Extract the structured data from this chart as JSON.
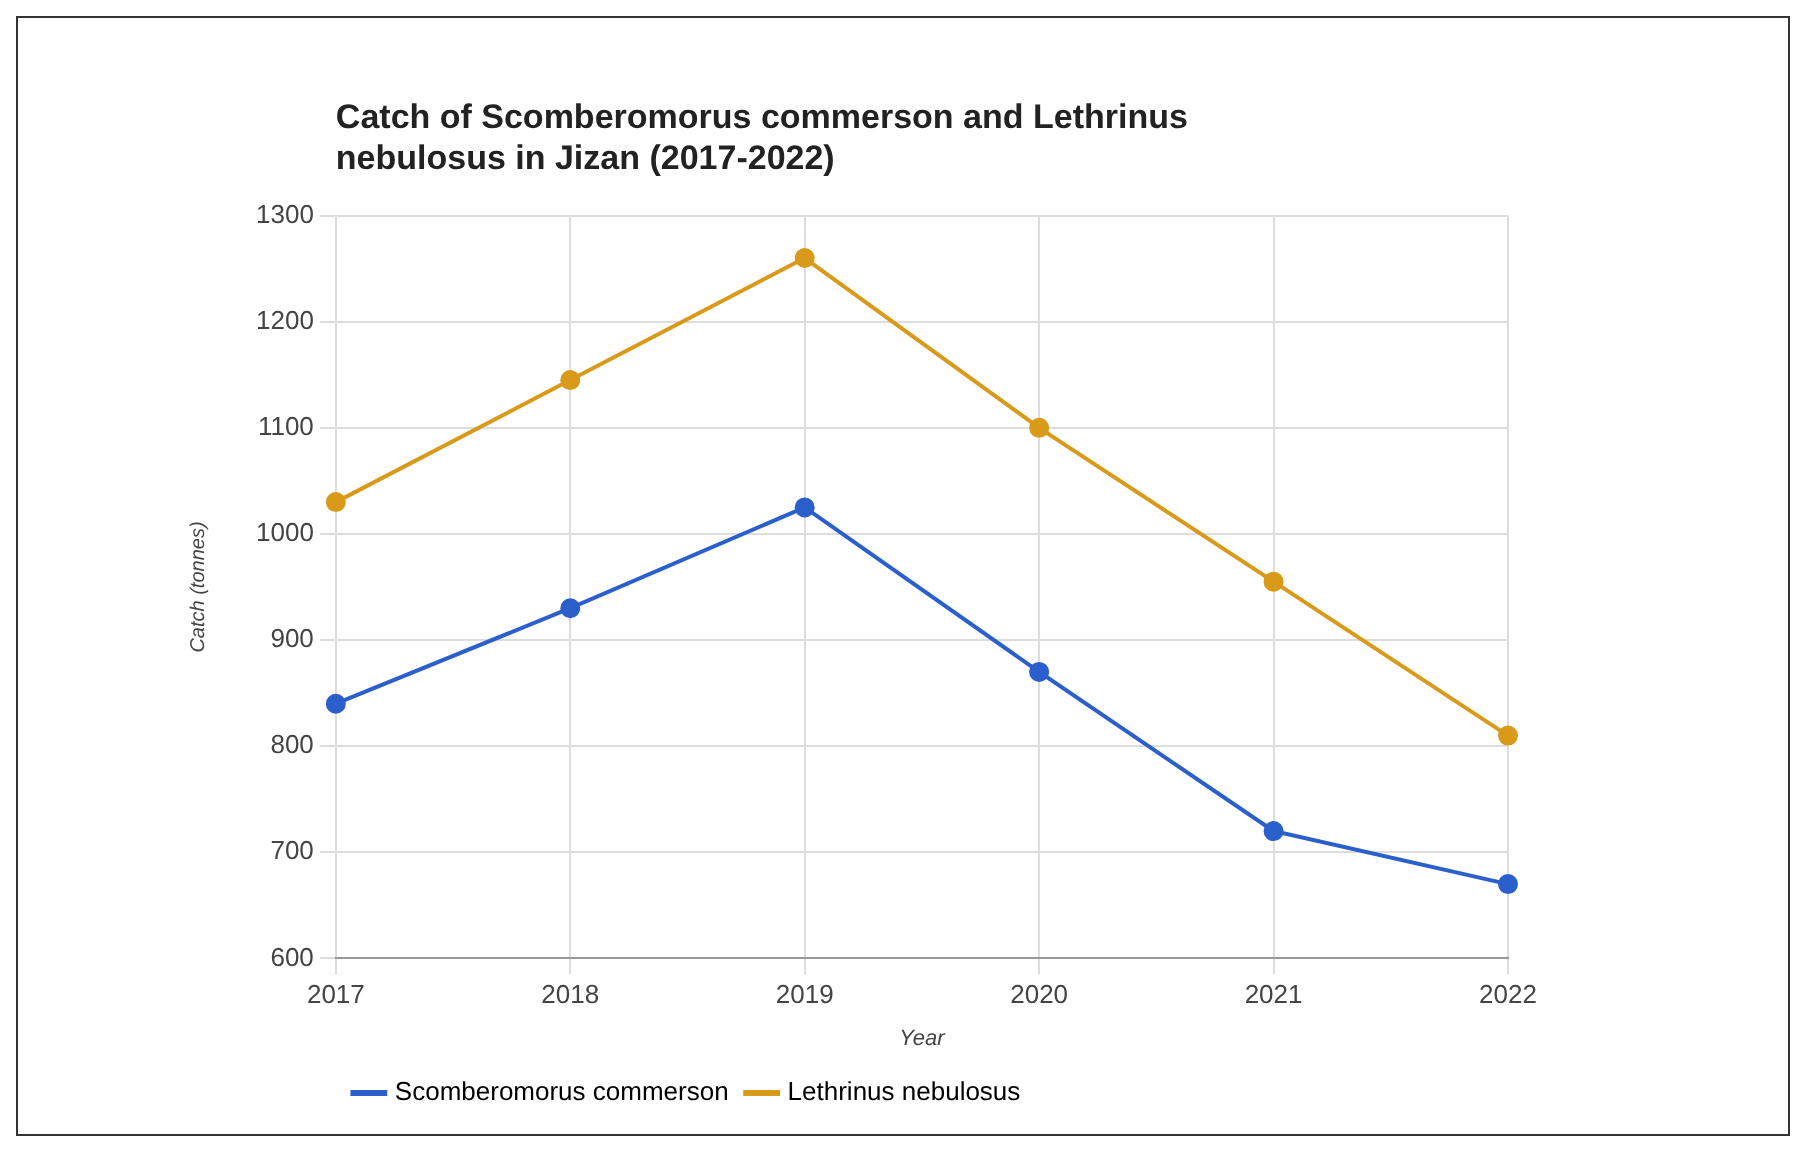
{
  "chart_data": {
    "type": "line",
    "title": "Catch of Scomberomorus commerson and Lethrinus nebulosus in Jizan (2017-2022)",
    "xlabel": "Year",
    "ylabel": "Catch (tonnes)",
    "categories": [
      "2017",
      "2018",
      "2019",
      "2020",
      "2021",
      "2022"
    ],
    "series": [
      {
        "name": "Scomberomorus commerson",
        "color": "#2a5fcc",
        "values": [
          840,
          930,
          1025,
          870,
          720,
          670
        ]
      },
      {
        "name": "Lethrinus nebulosus",
        "color": "#d99a1a",
        "values": [
          1030,
          1145,
          1260,
          1100,
          955,
          810
        ]
      }
    ],
    "ylim": [
      600,
      1300
    ],
    "yticks": [
      600,
      700,
      800,
      900,
      1000,
      1100,
      1200,
      1300
    ],
    "grid": true,
    "legend": "bottom",
    "marker": "circle",
    "line_style": "solid"
  }
}
